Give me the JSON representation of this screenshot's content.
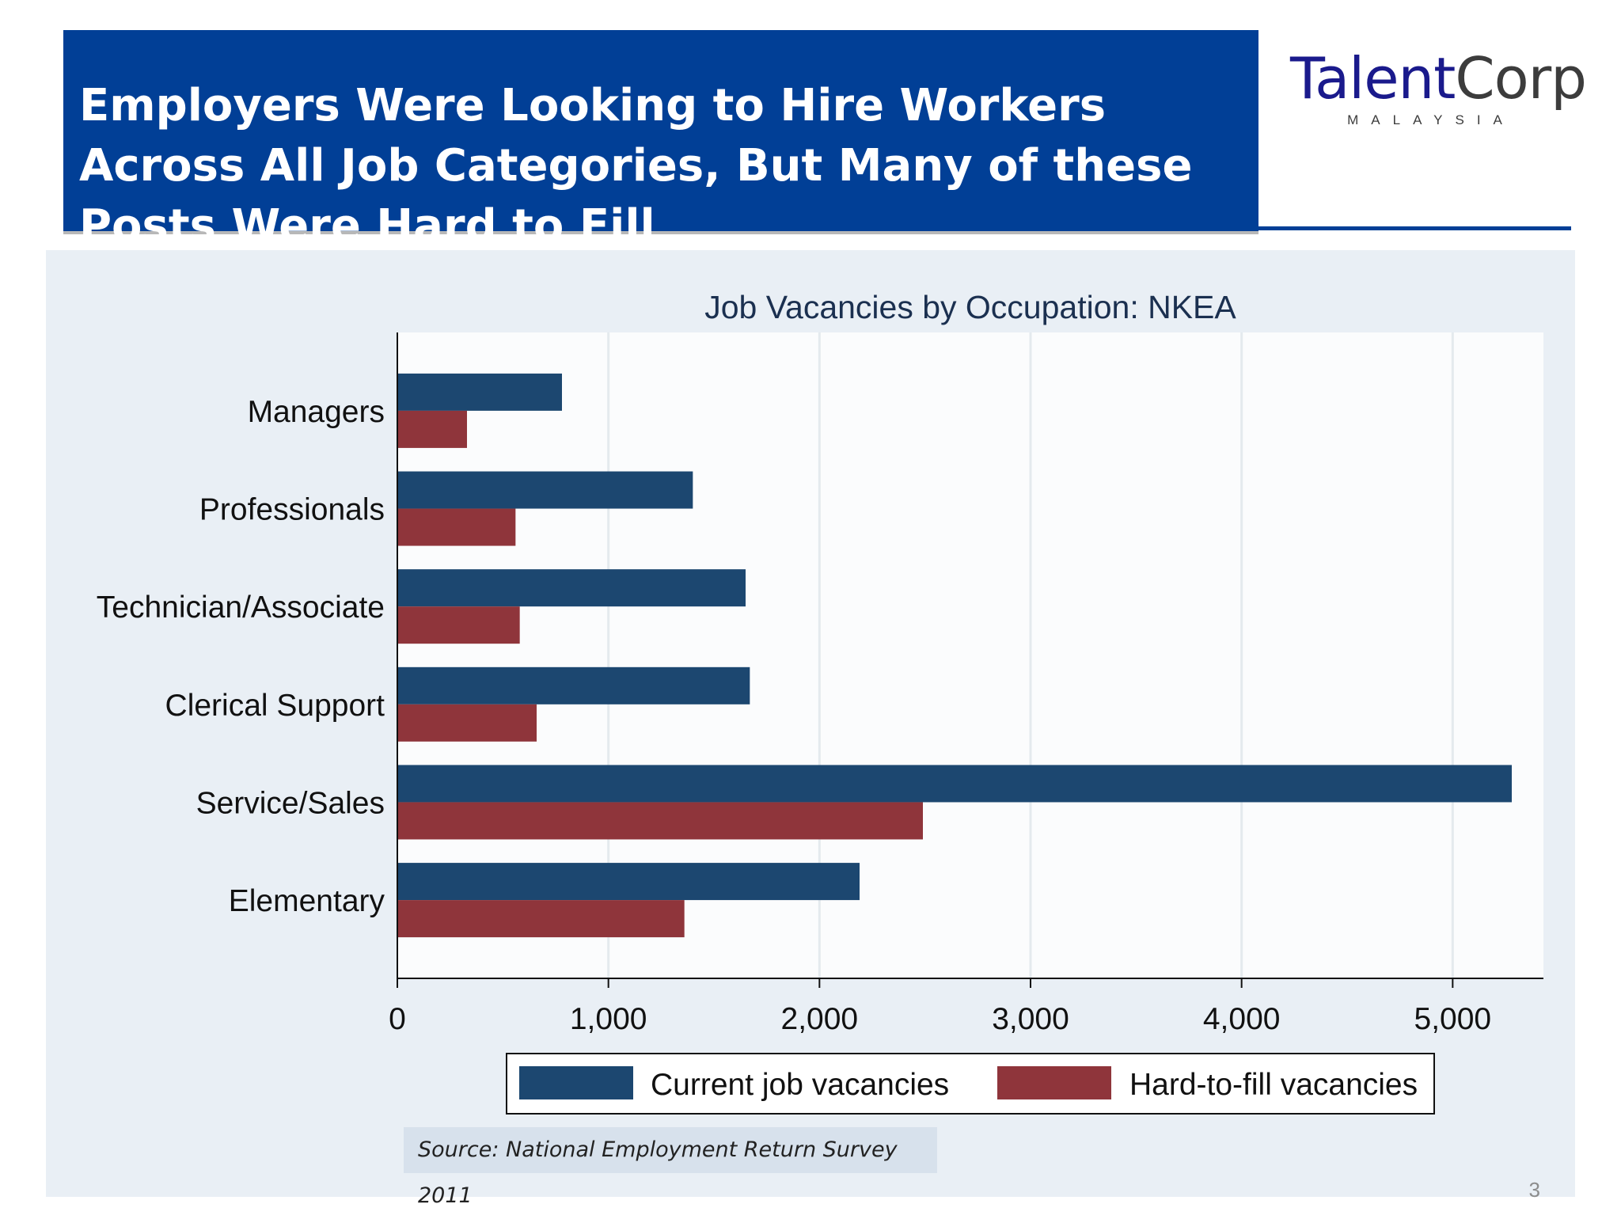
{
  "header": {
    "title": "Employers Were Looking to Hire Workers Across All Job Categories, But Many of these Posts Were Hard to Fill"
  },
  "logo": {
    "talent": "Talent",
    "corp": "Corp",
    "sub": "MALAYSIA"
  },
  "colors": {
    "header_bg": "#013f96",
    "current": "#1c4770",
    "hard": "#8f353b",
    "panel_bg": "#e9eff5"
  },
  "chart_data": {
    "type": "bar",
    "orientation": "horizontal",
    "title": "Job Vacancies by Occupation: NKEA",
    "categories": [
      "Managers",
      "Professionals",
      "Technician/Associate",
      "Clerical Support",
      "Service/Sales",
      "Elementary"
    ],
    "series": [
      {
        "name": "Current job vacancies",
        "values": [
          780,
          1400,
          1650,
          1670,
          5280,
          2190
        ]
      },
      {
        "name": "Hard-to-fill vacancies",
        "values": [
          330,
          560,
          580,
          660,
          2490,
          1360
        ]
      }
    ],
    "xlim": [
      0,
      5430
    ],
    "xticks": [
      0,
      1000,
      2000,
      3000,
      4000,
      5000
    ],
    "xtick_labels": [
      "0",
      "1,000",
      "2,000",
      "3,000",
      "4,000",
      "5,000"
    ],
    "grid": true,
    "legend": "bottom"
  },
  "source": "Source: National Employment Return Survey 2011",
  "page_number": "3"
}
